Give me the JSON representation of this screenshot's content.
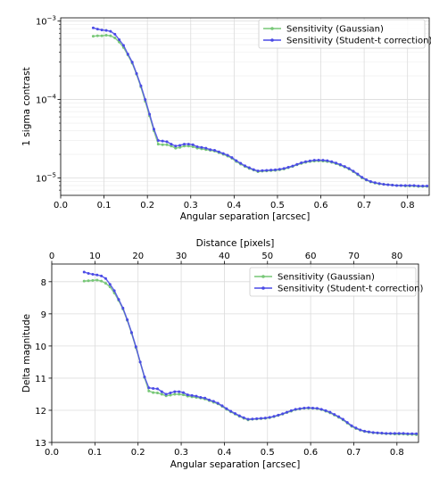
{
  "chart_data": [
    {
      "type": "line",
      "yscale": "log",
      "xlabel": "Angular separation [arcsec]",
      "ylabel": "1 sigma contrast",
      "xlim": [
        0.0,
        0.85
      ],
      "ylim": [
        6e-06,
        0.0011
      ],
      "xticks": [
        "0.0",
        "0.1",
        "0.2",
        "0.3",
        "0.4",
        "0.5",
        "0.6",
        "0.7",
        "0.8"
      ],
      "yticks": [
        {
          "value": 1e-05,
          "base": "10",
          "exp": "−5"
        },
        {
          "value": 0.0001,
          "base": "10",
          "exp": "−4"
        },
        {
          "value": 0.001,
          "base": "10",
          "exp": "−3"
        }
      ],
      "grid": true,
      "legend_position": "top-right",
      "x": [
        0.075,
        0.085,
        0.095,
        0.105,
        0.115,
        0.125,
        0.135,
        0.145,
        0.155,
        0.165,
        0.175,
        0.185,
        0.195,
        0.205,
        0.215,
        0.225,
        0.235,
        0.245,
        0.255,
        0.265,
        0.275,
        0.285,
        0.295,
        0.305,
        0.315,
        0.325,
        0.335,
        0.345,
        0.355,
        0.365,
        0.375,
        0.385,
        0.395,
        0.405,
        0.415,
        0.425,
        0.435,
        0.445,
        0.455,
        0.465,
        0.475,
        0.485,
        0.495,
        0.505,
        0.515,
        0.525,
        0.535,
        0.545,
        0.555,
        0.565,
        0.575,
        0.585,
        0.595,
        0.605,
        0.615,
        0.625,
        0.635,
        0.645,
        0.655,
        0.665,
        0.675,
        0.685,
        0.695,
        0.705,
        0.715,
        0.725,
        0.735,
        0.745,
        0.755,
        0.765,
        0.775,
        0.785,
        0.795,
        0.805,
        0.815,
        0.825,
        0.835,
        0.845
      ],
      "series": [
        {
          "name": "Sensitivity (Gaussian)",
          "color": "#77c777",
          "values": [
            0.00064,
            0.00065,
            0.00065,
            0.00066,
            0.00065,
            0.00061,
            0.00054,
            0.00046,
            0.00037,
            0.00029,
            0.00021,
            0.000145,
            9.5e-05,
            6.2e-05,
            4e-05,
            2.7e-05,
            2.65e-05,
            2.65e-05,
            2.55e-05,
            2.4e-05,
            2.45e-05,
            2.55e-05,
            2.55e-05,
            2.5e-05,
            2.4e-05,
            2.35e-05,
            2.3e-05,
            2.25e-05,
            2.2e-05,
            2.1e-05,
            2e-05,
            1.9e-05,
            1.78e-05,
            1.62e-05,
            1.5e-05,
            1.4e-05,
            1.32e-05,
            1.26e-05,
            1.2e-05,
            1.22e-05,
            1.23e-05,
            1.24e-05,
            1.25e-05,
            1.27e-05,
            1.3e-05,
            1.35e-05,
            1.4e-05,
            1.47e-05,
            1.53e-05,
            1.58e-05,
            1.62e-05,
            1.64e-05,
            1.65e-05,
            1.64e-05,
            1.62e-05,
            1.58e-05,
            1.52e-05,
            1.45e-05,
            1.38e-05,
            1.3e-05,
            1.2e-05,
            1.1e-05,
            1e-05,
            9.4e-06,
            8.9e-06,
            8.6e-06,
            8.4e-06,
            8.3e-06,
            8.2e-06,
            8.1e-06,
            8e-06,
            8e-06,
            7.9e-06,
            7.9e-06,
            7.9e-06,
            7.8e-06,
            7.8e-06,
            7.8e-06
          ]
        },
        {
          "name": "Sensitivity (Student-t correction)",
          "color": "#4a4ae6",
          "values": [
            0.00082,
            0.00079,
            0.00077,
            0.00076,
            0.00074,
            0.00068,
            0.00058,
            0.00049,
            0.00038,
            0.0003,
            0.000215,
            0.00015,
            0.0001,
            6.5e-05,
            4.2e-05,
            3e-05,
            2.95e-05,
            2.9e-05,
            2.7e-05,
            2.55e-05,
            2.6e-05,
            2.7e-05,
            2.7e-05,
            2.65e-05,
            2.5e-05,
            2.45e-05,
            2.4e-05,
            2.3e-05,
            2.25e-05,
            2.15e-05,
            2.05e-05,
            1.95e-05,
            1.82e-05,
            1.66e-05,
            1.54e-05,
            1.43e-05,
            1.35e-05,
            1.28e-05,
            1.23e-05,
            1.24e-05,
            1.25e-05,
            1.26e-05,
            1.27e-05,
            1.29e-05,
            1.32e-05,
            1.37e-05,
            1.42e-05,
            1.49e-05,
            1.56e-05,
            1.61e-05,
            1.65e-05,
            1.68e-05,
            1.69e-05,
            1.68e-05,
            1.66e-05,
            1.61e-05,
            1.55e-05,
            1.48e-05,
            1.4e-05,
            1.32e-05,
            1.22e-05,
            1.12e-05,
            1.02e-05,
            9.5e-06,
            9e-06,
            8.7e-06,
            8.5e-06,
            8.3e-06,
            8.2e-06,
            8.1e-06,
            8e-06,
            8e-06,
            8e-06,
            8e-06,
            8e-06,
            7.9e-06,
            7.9e-06,
            7.9e-06
          ]
        }
      ]
    },
    {
      "type": "line",
      "xlabel": "Angular separation [arcsec]",
      "x2label": "Distance [pixels]",
      "ylabel": "Delta magnitude",
      "xlim": [
        0.0,
        0.85
      ],
      "x2lim": [
        0,
        85
      ],
      "ylim": [
        13.0,
        7.45
      ],
      "y_inverted": true,
      "xticks": [
        "0.0",
        "0.1",
        "0.2",
        "0.3",
        "0.4",
        "0.5",
        "0.6",
        "0.7",
        "0.8"
      ],
      "x2ticks": [
        "0",
        "10",
        "20",
        "30",
        "40",
        "50",
        "60",
        "70",
        "80"
      ],
      "yticks": [
        "8",
        "9",
        "10",
        "11",
        "12",
        "13"
      ],
      "grid": true,
      "legend_position": "top-right",
      "x": [
        0.075,
        0.085,
        0.095,
        0.105,
        0.115,
        0.125,
        0.135,
        0.145,
        0.155,
        0.165,
        0.175,
        0.185,
        0.195,
        0.205,
        0.215,
        0.225,
        0.235,
        0.245,
        0.255,
        0.265,
        0.275,
        0.285,
        0.295,
        0.305,
        0.315,
        0.325,
        0.335,
        0.345,
        0.355,
        0.365,
        0.375,
        0.385,
        0.395,
        0.405,
        0.415,
        0.425,
        0.435,
        0.445,
        0.455,
        0.465,
        0.475,
        0.485,
        0.495,
        0.505,
        0.515,
        0.525,
        0.535,
        0.545,
        0.555,
        0.565,
        0.575,
        0.585,
        0.595,
        0.605,
        0.615,
        0.625,
        0.635,
        0.645,
        0.655,
        0.665,
        0.675,
        0.685,
        0.695,
        0.705,
        0.715,
        0.725,
        0.735,
        0.745,
        0.755,
        0.765,
        0.775,
        0.785,
        0.795,
        0.805,
        0.815,
        0.825,
        0.835,
        0.845
      ],
      "series": [
        {
          "name": "Sensitivity (Gaussian)",
          "color": "#77c777",
          "values": [
            7.98,
            7.97,
            7.96,
            7.95,
            7.98,
            8.05,
            8.16,
            8.35,
            8.58,
            8.85,
            9.2,
            9.6,
            10.05,
            10.5,
            10.98,
            11.4,
            11.45,
            11.46,
            11.5,
            11.55,
            11.53,
            11.5,
            11.5,
            11.52,
            11.56,
            11.58,
            11.6,
            11.62,
            11.65,
            11.7,
            11.75,
            11.8,
            11.88,
            11.97,
            12.05,
            12.12,
            12.19,
            12.25,
            12.3,
            12.28,
            12.27,
            12.26,
            12.25,
            12.23,
            12.2,
            12.16,
            12.12,
            12.07,
            12.03,
            11.98,
            11.96,
            11.94,
            11.94,
            11.94,
            11.95,
            11.98,
            12.03,
            12.08,
            12.15,
            12.22,
            12.3,
            12.4,
            12.5,
            12.57,
            12.62,
            12.66,
            12.68,
            12.7,
            12.71,
            12.72,
            12.73,
            12.73,
            12.74,
            12.74,
            12.74,
            12.75,
            12.75,
            12.76
          ]
        },
        {
          "name": "Sensitivity (Student-t correction)",
          "color": "#4a4ae6",
          "values": [
            7.7,
            7.74,
            7.77,
            7.79,
            7.82,
            7.9,
            8.08,
            8.28,
            8.55,
            8.82,
            9.18,
            9.58,
            10.02,
            10.5,
            10.96,
            11.3,
            11.32,
            11.33,
            11.42,
            11.5,
            11.46,
            11.42,
            11.42,
            11.45,
            11.52,
            11.54,
            11.56,
            11.6,
            11.62,
            11.68,
            11.72,
            11.78,
            11.86,
            11.95,
            12.03,
            12.1,
            12.17,
            12.23,
            12.28,
            12.27,
            12.26,
            12.25,
            12.24,
            12.22,
            12.19,
            12.15,
            12.11,
            12.06,
            12.01,
            11.97,
            11.95,
            11.93,
            11.92,
            11.93,
            11.94,
            11.97,
            12.01,
            12.06,
            12.13,
            12.2,
            12.28,
            12.38,
            12.48,
            12.55,
            12.61,
            12.65,
            12.67,
            12.69,
            12.7,
            12.71,
            12.72,
            12.72,
            12.72,
            12.72,
            12.72,
            12.73,
            12.73,
            12.73
          ]
        }
      ]
    }
  ]
}
